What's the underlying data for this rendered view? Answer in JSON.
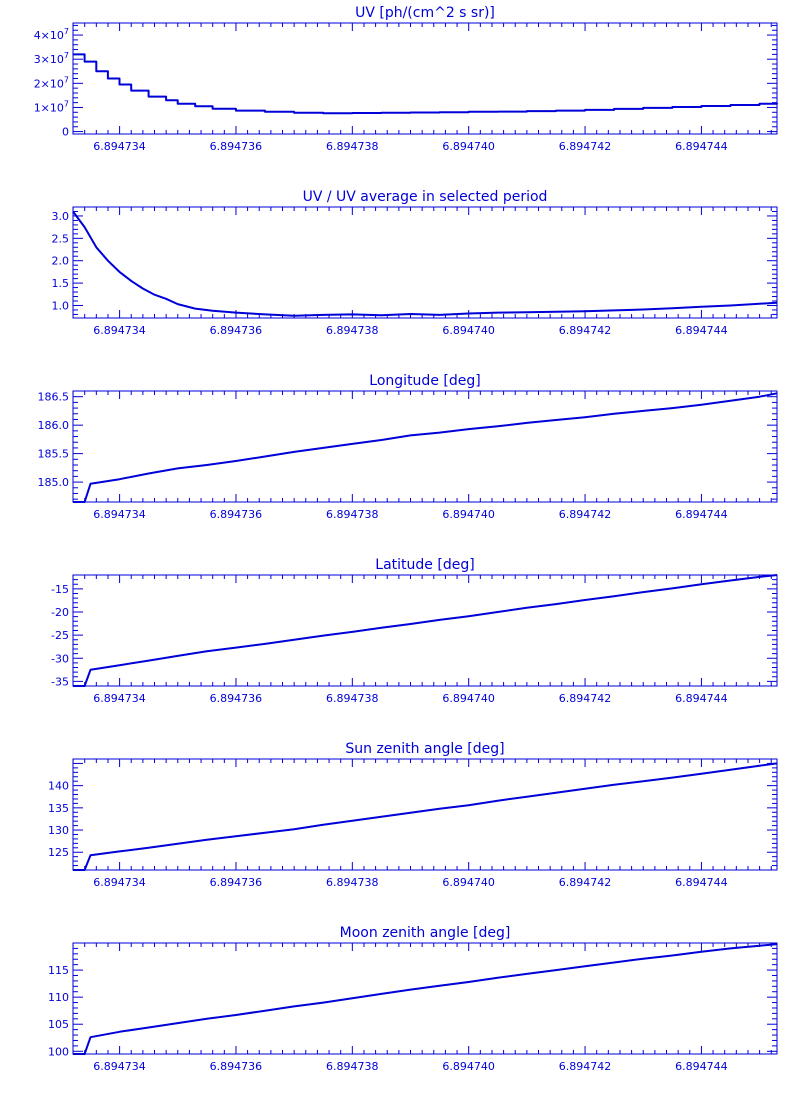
{
  "style": {
    "color": "#0000d8",
    "background": "#ffffff"
  },
  "x_axis": {
    "range": [
      6.8947332,
      6.8947453
    ],
    "ticks": [
      6.894734,
      6.894736,
      6.894738,
      6.89474,
      6.894742,
      6.894744
    ],
    "tick_labels": [
      "6.894734",
      "6.894736",
      "6.894738",
      "6.894740",
      "6.894742",
      "6.894744"
    ]
  },
  "chart_data": [
    {
      "type": "line",
      "step": true,
      "title": "UV [ph/(cm^2 s sr)]",
      "ylim": [
        -1000000,
        45000000
      ],
      "yticks": [
        0,
        10000000,
        20000000,
        30000000,
        40000000
      ],
      "ytick_labels": [
        {
          "mant": "0",
          "exp": ""
        },
        {
          "mant": "1×10",
          "exp": "7"
        },
        {
          "mant": "2×10",
          "exp": "7"
        },
        {
          "mant": "3×10",
          "exp": "7"
        },
        {
          "mant": "4×10",
          "exp": "7"
        }
      ],
      "series": [
        {
          "x": [
            6.8947332,
            6.8947334,
            6.8947336,
            6.8947338,
            6.894734,
            6.8947342,
            6.8947345,
            6.8947348,
            6.894735,
            6.8947353,
            6.8947356,
            6.894736,
            6.8947365,
            6.894737,
            6.8947375,
            6.894738,
            6.8947385,
            6.894739,
            6.8947395,
            6.89474,
            6.8947405,
            6.894741,
            6.8947415,
            6.894742,
            6.8947425,
            6.894743,
            6.8947435,
            6.894744,
            6.8947445,
            6.894745,
            6.8947453
          ],
          "y": [
            32000000,
            29000000,
            25000000,
            22000000,
            19500000,
            17000000,
            14500000,
            13000000,
            11500000,
            10500000,
            9500000,
            8700000,
            8200000,
            7800000,
            7600000,
            7700000,
            7800000,
            7900000,
            8000000,
            8200000,
            8300000,
            8500000,
            8700000,
            9000000,
            9400000,
            9800000,
            10200000,
            10600000,
            11000000,
            11500000,
            11800000
          ]
        }
      ]
    },
    {
      "type": "line",
      "title": "UV / UV average in selected period",
      "ylim": [
        0.72,
        3.2
      ],
      "yticks": [
        1.0,
        1.5,
        2.0,
        2.5,
        3.0
      ],
      "ytick_labels": [
        "1.0",
        "1.5",
        "2.0",
        "2.5",
        "3.0"
      ],
      "series": [
        {
          "x": [
            6.8947332,
            6.8947334,
            6.8947336,
            6.8947338,
            6.894734,
            6.8947342,
            6.8947344,
            6.8947346,
            6.8947348,
            6.894735,
            6.8947353,
            6.8947356,
            6.894736,
            6.8947365,
            6.894737,
            6.8947375,
            6.894738,
            6.8947385,
            6.894739,
            6.8947395,
            6.89474,
            6.8947405,
            6.894741,
            6.8947415,
            6.894742,
            6.8947425,
            6.894743,
            6.8947435,
            6.894744,
            6.8947445,
            6.894745,
            6.8947453
          ],
          "y": [
            3.1,
            2.75,
            2.3,
            2.0,
            1.75,
            1.55,
            1.38,
            1.24,
            1.15,
            1.03,
            0.93,
            0.88,
            0.84,
            0.8,
            0.77,
            0.79,
            0.8,
            0.78,
            0.81,
            0.79,
            0.82,
            0.84,
            0.85,
            0.86,
            0.87,
            0.89,
            0.91,
            0.94,
            0.97,
            1.0,
            1.04,
            1.06
          ]
        }
      ]
    },
    {
      "type": "line",
      "title": "Longitude [deg]",
      "ylim": [
        184.65,
        186.6
      ],
      "yticks": [
        185.0,
        185.5,
        186.0,
        186.5
      ],
      "ytick_labels": [
        "185.0",
        "185.5",
        "186.0",
        "186.5"
      ],
      "series": [
        {
          "x": [
            6.8947332,
            6.8947334,
            6.8947335,
            6.894734,
            6.8947345,
            6.894735,
            6.8947355,
            6.894736,
            6.8947365,
            6.894737,
            6.8947375,
            6.894738,
            6.8947385,
            6.894739,
            6.8947395,
            6.89474,
            6.8947405,
            6.894741,
            6.8947415,
            6.894742,
            6.8947425,
            6.894743,
            6.8947435,
            6.894744,
            6.8947445,
            6.894745,
            6.8947453
          ],
          "y": [
            184.65,
            184.65,
            184.97,
            185.05,
            185.15,
            185.24,
            185.3,
            185.37,
            185.45,
            185.53,
            185.6,
            185.67,
            185.74,
            185.82,
            185.87,
            185.93,
            185.98,
            186.04,
            186.09,
            186.14,
            186.2,
            186.25,
            186.3,
            186.36,
            186.43,
            186.5,
            186.56
          ]
        }
      ]
    },
    {
      "type": "line",
      "title": "Latitude [deg]",
      "ylim": [
        -36,
        -12
      ],
      "yticks": [
        -35,
        -30,
        -25,
        -20,
        -15
      ],
      "ytick_labels": [
        "-35",
        "-30",
        "-25",
        "-20",
        "-15"
      ],
      "series": [
        {
          "x": [
            6.8947332,
            6.8947334,
            6.8947335,
            6.894734,
            6.8947345,
            6.894735,
            6.8947355,
            6.894736,
            6.8947365,
            6.894737,
            6.8947375,
            6.894738,
            6.8947385,
            6.894739,
            6.8947395,
            6.89474,
            6.8947405,
            6.894741,
            6.8947415,
            6.894742,
            6.8947425,
            6.894743,
            6.8947435,
            6.894744,
            6.8947445,
            6.894745,
            6.8947453
          ],
          "y": [
            -36,
            -36,
            -32.5,
            -31.5,
            -30.5,
            -29.5,
            -28.5,
            -27.7,
            -26.9,
            -26,
            -25.1,
            -24.3,
            -23.4,
            -22.6,
            -21.7,
            -20.9,
            -20.0,
            -19.1,
            -18.3,
            -17.4,
            -16.6,
            -15.7,
            -14.9,
            -14.0,
            -13.2,
            -12.4,
            -12.0
          ]
        }
      ]
    },
    {
      "type": "line",
      "title": "Sun zenith angle [deg]",
      "ylim": [
        121,
        146
      ],
      "yticks": [
        125,
        130,
        135,
        140
      ],
      "ytick_labels": [
        "125",
        "130",
        "135",
        "140"
      ],
      "series": [
        {
          "x": [
            6.8947332,
            6.8947334,
            6.8947335,
            6.894734,
            6.8947345,
            6.894735,
            6.8947355,
            6.894736,
            6.8947365,
            6.894737,
            6.8947375,
            6.894738,
            6.8947385,
            6.894739,
            6.8947395,
            6.89474,
            6.8947405,
            6.894741,
            6.8947415,
            6.894742,
            6.8947425,
            6.894743,
            6.8947435,
            6.894744,
            6.8947445,
            6.894745,
            6.8947453
          ],
          "y": [
            121,
            121,
            124.3,
            125.2,
            126.0,
            126.9,
            127.8,
            128.6,
            129.4,
            130.2,
            131.2,
            132.1,
            133.0,
            133.9,
            134.8,
            135.6,
            136.6,
            137.5,
            138.4,
            139.3,
            140.2,
            141.0,
            141.8,
            142.7,
            143.6,
            144.5,
            145.0
          ]
        }
      ]
    },
    {
      "type": "line",
      "title": "Moon zenith angle [deg]",
      "ylim": [
        99.5,
        120
      ],
      "yticks": [
        100,
        105,
        110,
        115
      ],
      "ytick_labels": [
        "100",
        "105",
        "110",
        "115"
      ],
      "series": [
        {
          "x": [
            6.8947332,
            6.8947334,
            6.8947335,
            6.894734,
            6.8947345,
            6.894735,
            6.8947355,
            6.894736,
            6.8947365,
            6.894737,
            6.8947375,
            6.894738,
            6.8947385,
            6.894739,
            6.8947395,
            6.89474,
            6.8947405,
            6.894741,
            6.8947415,
            6.894742,
            6.8947425,
            6.894743,
            6.8947435,
            6.894744,
            6.8947445,
            6.894745,
            6.8947453
          ],
          "y": [
            99.5,
            99.5,
            102.6,
            103.6,
            104.4,
            105.2,
            106.0,
            106.7,
            107.5,
            108.3,
            109.0,
            109.8,
            110.6,
            111.4,
            112.1,
            112.8,
            113.6,
            114.3,
            115.0,
            115.7,
            116.4,
            117.1,
            117.7,
            118.4,
            119.0,
            119.5,
            119.8
          ]
        }
      ]
    }
  ]
}
